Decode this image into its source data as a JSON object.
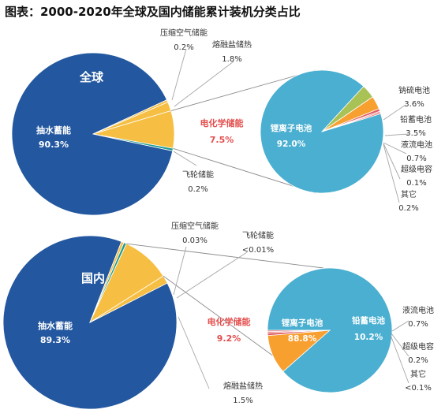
{
  "title": "图表：2000-2020年全球及国内储能累计装机分类占比",
  "colors": {
    "pumped_hydro": "#23579f",
    "electrochemical": "#f6bf43",
    "flywheel": "#1a9a93",
    "li_ion": "#4aafd0",
    "nas": "#a9c256",
    "lead_acid": "#f7a030",
    "flow": "#e06063",
    "other": "#e06063",
    "highlight_text": "#e3504f",
    "leader_line": "#a6a6a6"
  },
  "chart_data": [
    {
      "type": "pie",
      "region_label": "全球",
      "main_label": "抽水蓄能",
      "main_value_text": "90.3%",
      "electro_label": "电化学储能",
      "electro_value_text": "7.5%",
      "sub_label": "锂离子电池",
      "sub_value_text": "92.0%",
      "slices": [
        {
          "name": "抽水蓄能",
          "value": 90.3,
          "value_text": "90.3%",
          "color": "pumped_hydro"
        },
        {
          "name": "压缩空气储能",
          "value": 0.2,
          "value_text": "0.2%",
          "color": "electrochemical"
        },
        {
          "name": "熔融盐储热",
          "value": 1.8,
          "value_text": "1.8%",
          "color": "electrochemical"
        },
        {
          "name": "电化学储能",
          "value": 7.5,
          "value_text": "7.5%",
          "color": "electrochemical"
        },
        {
          "name": "飞轮储能",
          "value": 0.2,
          "value_text": "0.2%",
          "color": "flywheel"
        }
      ],
      "sub_slices": [
        {
          "name": "锂离子电池",
          "value": 92.0,
          "value_text": "92.0%",
          "color": "li_ion"
        },
        {
          "name": "钠硫电池",
          "value": 3.6,
          "value_text": "3.6%",
          "color": "nas"
        },
        {
          "name": "铅蓄电池",
          "value": 3.5,
          "value_text": "3.5%",
          "color": "lead_acid"
        },
        {
          "name": "液流电池",
          "value": 0.7,
          "value_text": "0.7%",
          "color": "flow"
        },
        {
          "name": "超级电容",
          "value": 0.1,
          "value_text": "0.1%",
          "color": "flow"
        },
        {
          "name": "其它",
          "value": 0.2,
          "value_text": "0.2%",
          "color": "other"
        }
      ]
    },
    {
      "type": "pie",
      "region_label": "国内",
      "main_label": "抽水蓄能",
      "main_value_text": "89.3%",
      "electro_label": "电化学储能",
      "electro_value_text": "9.2%",
      "sub_label": "锂离子电池",
      "sub_value_text": "88.8%",
      "slices": [
        {
          "name": "抽水蓄能",
          "value": 89.3,
          "value_text": "89.3%",
          "color": "pumped_hydro"
        },
        {
          "name": "压缩空气储能",
          "value": 0.03,
          "value_text": "0.03%",
          "color": "electrochemical"
        },
        {
          "name": "飞轮储能",
          "value": 0.01,
          "value_text": "<0.01%",
          "color": "flywheel"
        },
        {
          "name": "电化学储能",
          "value": 9.2,
          "value_text": "9.2%",
          "color": "electrochemical"
        },
        {
          "name": "熔融盐储热",
          "value": 1.5,
          "value_text": "1.5%",
          "color": "electrochemical"
        }
      ],
      "sub_slices": [
        {
          "name": "锂离子电池",
          "value": 88.8,
          "value_text": "88.8%",
          "color": "li_ion"
        },
        {
          "name": "铅蓄电池",
          "value": 10.2,
          "value_text": "10.2%",
          "color": "lead_acid"
        },
        {
          "name": "液流电池",
          "value": 0.7,
          "value_text": "0.7%",
          "color": "flow"
        },
        {
          "name": "超级电容",
          "value": 0.2,
          "value_text": "0.2%",
          "color": "flow"
        },
        {
          "name": "其它",
          "value": 0.1,
          "value_text": "<0.1%",
          "color": "other"
        }
      ]
    }
  ]
}
